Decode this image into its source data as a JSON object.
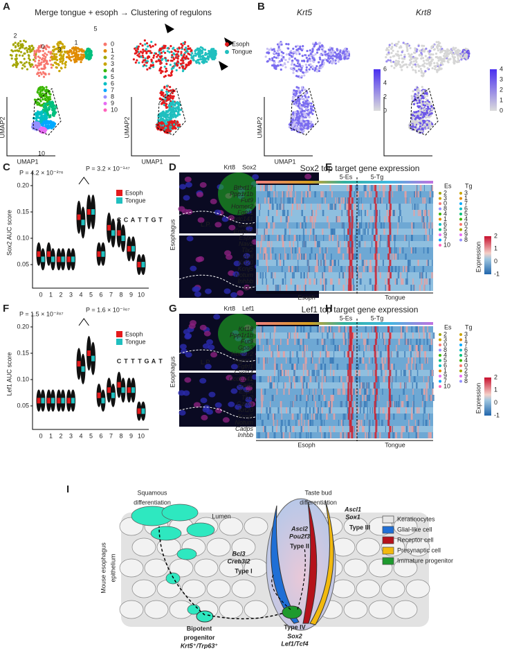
{
  "panel_a": {
    "label": "A",
    "title": "Merge tongue + esoph → Clustering of regulons",
    "clusters": [
      "0",
      "1",
      "2",
      "3",
      "4",
      "5",
      "6",
      "7",
      "8",
      "9",
      "10"
    ],
    "cluster_colors": [
      "#f8766d",
      "#e08b00",
      "#a3a500",
      "#c9a500",
      "#39b600",
      "#00bf7d",
      "#00bfc4",
      "#00a9ff",
      "#9590ff",
      "#e76bf3",
      "#ff62bc"
    ],
    "plot_cluster_labels": [
      "2",
      "0",
      "3",
      "1",
      "5",
      "10"
    ],
    "groups": [
      "Esoph",
      "Tongue"
    ],
    "group_colors": [
      "#e41a1c",
      "#20bfbf"
    ],
    "x_axis": "UMAP1",
    "y_axis": "UMAP2"
  },
  "panel_b": {
    "label": "B",
    "genes": [
      "Krt5",
      "Krt8"
    ],
    "colorbar_krt5": [
      "6",
      "4",
      "2",
      "0"
    ],
    "colorbar_krt8": [
      "4",
      "3",
      "2",
      "1",
      "0"
    ],
    "x_axis": "UMAP1",
    "y_axis": "UMAP2"
  },
  "panel_c": {
    "label": "C",
    "p_values": [
      "P = 4.2 × 10⁻²⁷⁶",
      "P = 3.2 × 10⁻¹⁴⁷"
    ],
    "y_axis": "Sox2 AUC score",
    "yticks": [
      "0.20",
      "0.15",
      "0.10",
      "0.05"
    ],
    "categories": [
      "0",
      "1",
      "2",
      "3",
      "4",
      "5",
      "6",
      "7",
      "8",
      "9",
      "10"
    ],
    "legend": [
      "Esoph",
      "Tongue"
    ],
    "motif_letters": [
      "C",
      "C",
      "A",
      "T",
      "T",
      "G",
      "T"
    ]
  },
  "panel_d": {
    "label": "D",
    "stains": [
      "Krt8",
      "Sox2"
    ],
    "tissue": "Esophagus",
    "region": "L.P."
  },
  "panel_e": {
    "label": "E",
    "title": "Sox2 top target gene expression",
    "groups": [
      "5-Es",
      "5-Tg"
    ],
    "genes": [
      "Btbd17",
      "Ppp1r1b",
      "Fut9",
      "Homer2",
      "Fgfrl1",
      "Ccdc141",
      "Gad2",
      "Entpd2",
      "Espn",
      "Nav2",
      "Tlx2",
      "Avil",
      "Krt20",
      "Kcnj5",
      "Notum",
      "Inhbb",
      "Igf1"
    ],
    "column_headers": [
      "Es",
      "Tg"
    ],
    "es_order": [
      "2",
      "3",
      "0",
      "8",
      "4",
      "1",
      "6",
      "5",
      "9",
      "7",
      "10"
    ],
    "tg_order": [
      "3",
      "1",
      "7",
      "6",
      "5",
      "4",
      "0",
      "2",
      "9",
      "8"
    ],
    "colorbar": [
      "2",
      "1",
      "0",
      "-1"
    ],
    "colorbar_title": "Expression",
    "x_labels": [
      "Esoph",
      "Tongue"
    ]
  },
  "panel_f": {
    "label": "F",
    "p_values": [
      "P = 1.5 × 10⁻²⁸⁷",
      "P = 1.6 × 10⁻¹⁶⁷"
    ],
    "y_axis": "Lef1 AUC score",
    "yticks": [
      "0.20",
      "0.15",
      "0.10",
      "0.05"
    ],
    "categories": [
      "0",
      "1",
      "2",
      "3",
      "4",
      "5",
      "6",
      "7",
      "8",
      "9",
      "10"
    ],
    "legend": [
      "Esoph",
      "Tongue"
    ],
    "motif_letters": [
      "C",
      "T",
      "T",
      "T",
      "G",
      "A",
      "T"
    ]
  },
  "panel_g": {
    "label": "G",
    "stains": [
      "Krt8",
      "Lef1"
    ],
    "tissue": "Esophagus",
    "region": "L.P."
  },
  "panel_h": {
    "label": "H",
    "title": "Lef1 top target gene expression",
    "groups": [
      "5-Es",
      "5-Tg"
    ],
    "genes": [
      "Krt18",
      "Ppp1r1b",
      "Fut9",
      "Gpa3",
      "Homer2",
      "Aspcr1",
      "Fgfrl1",
      "Cxcl14",
      "Ccdc141",
      "Gad2",
      "Espn",
      "Tlx2",
      "Gzma",
      "Krt20",
      "Kcnj5",
      "Notum",
      "Cadps",
      "Inhbb"
    ],
    "column_headers": [
      "Es",
      "Tg"
    ],
    "es_order": [
      "2",
      "3",
      "0",
      "8",
      "4",
      "5",
      "6",
      "1",
      "9",
      "7",
      "10"
    ],
    "tg_order": [
      "3",
      "1",
      "7",
      "6",
      "5",
      "4",
      "0",
      "2",
      "9",
      "8"
    ],
    "colorbar": [
      "2",
      "1",
      "0",
      "-1"
    ],
    "colorbar_title": "Expression",
    "x_labels": [
      "Esoph",
      "Tongue"
    ]
  },
  "panel_i": {
    "label": "I",
    "squamous": [
      "Squamous",
      "differentiation"
    ],
    "lumen": "Lumen",
    "taste": [
      "Taste bud",
      "differentiation"
    ],
    "tissue": [
      "Mouse esophagus",
      "epithelium"
    ],
    "type1": {
      "genes": [
        "Bcl3",
        "Creb3l2"
      ],
      "name": "Type I"
    },
    "type2": {
      "genes": [
        "Ascl2",
        "Pou2f3"
      ],
      "name": "Type II"
    },
    "type3": {
      "genes": [
        "Ascl1",
        "Sox1"
      ],
      "name": "Type III"
    },
    "type4": {
      "name": "Type IV",
      "genes": [
        "Sox2",
        "Lef1/Tcf4"
      ]
    },
    "progenitor": {
      "name": [
        "Bipotent",
        "progenitor"
      ],
      "markers": "Krt5⁺/Trp63⁺"
    },
    "legend": [
      {
        "name": "Keratinocytes",
        "color": "#e6e6e6"
      },
      {
        "name": "Glial-like cell",
        "color": "#1f6fd6"
      },
      {
        "name": "Receptor cell",
        "color": "#b5121b"
      },
      {
        "name": "Presynaptic cell",
        "color": "#f2b90f"
      },
      {
        "name": "Immature progenitor",
        "color": "#1e9a2e"
      }
    ]
  }
}
